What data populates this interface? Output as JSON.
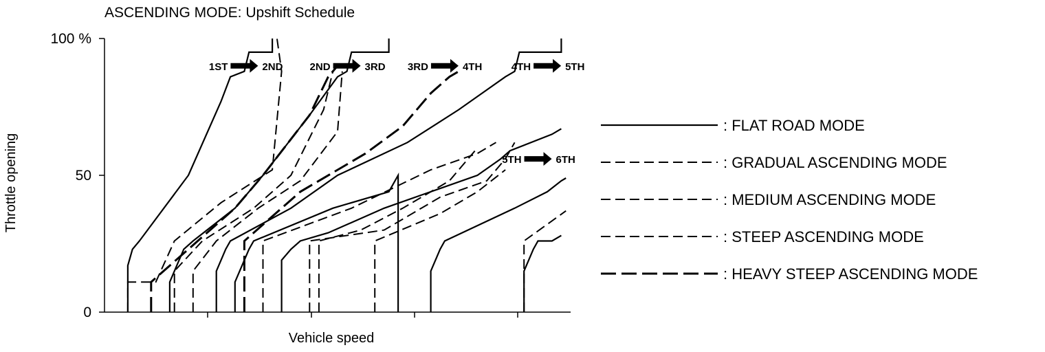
{
  "chart_data": {
    "type": "line",
    "title": "ASCENDING MODE: Upshift Schedule",
    "xlabel": "Vehicle speed",
    "ylabel": "Throttle opening",
    "y_ticks": [
      "0",
      "50",
      "100 %"
    ],
    "ylim": [
      0,
      100
    ],
    "xlim": [
      0,
      100
    ],
    "legend_position": "right",
    "series": [
      {
        "name": ": FLAT ROAD MODE",
        "style": "solid",
        "lines": [
          [
            [
              5,
              0
            ],
            [
              5,
              17
            ],
            [
              6,
              23
            ],
            [
              7.5,
              26
            ],
            [
              18,
              50
            ],
            [
              25,
              77
            ],
            [
              27,
              86
            ],
            [
              30,
              88
            ],
            [
              31,
              95
            ],
            [
              36,
              95
            ],
            [
              36,
              100
            ]
          ],
          [
            [
              14,
              0
            ],
            [
              14,
              11
            ],
            [
              15,
              15
            ],
            [
              16,
              19
            ],
            [
              17,
              23
            ],
            [
              19,
              26
            ],
            [
              28,
              38
            ],
            [
              34,
              50
            ],
            [
              44,
              72
            ],
            [
              50,
              86
            ],
            [
              52,
              88
            ],
            [
              53,
              95
            ],
            [
              61,
              95
            ],
            [
              61,
              100
            ]
          ],
          [
            [
              24,
              0
            ],
            [
              24,
              15
            ],
            [
              25,
              19
            ],
            [
              26,
              23
            ],
            [
              27,
              26
            ],
            [
              40,
              38
            ],
            [
              50,
              50
            ],
            [
              65,
              62
            ],
            [
              76,
              74
            ],
            [
              86,
              86
            ],
            [
              88,
              88
            ],
            [
              89,
              95
            ],
            [
              98,
              95
            ],
            [
              98,
              100
            ]
          ],
          [
            [
              28,
              0
            ],
            [
              28,
              11
            ],
            [
              29,
              15
            ],
            [
              30,
              19
            ],
            [
              31,
              23
            ],
            [
              32,
              26
            ],
            [
              49,
              38
            ],
            [
              61,
              44
            ],
            [
              63,
              50
            ],
            [
              63,
              0
            ]
          ],
          [
            [
              38,
              0
            ],
            [
              38,
              19
            ],
            [
              40,
              23
            ],
            [
              42,
              26
            ],
            [
              48,
              29
            ],
            [
              60,
              38
            ],
            [
              70,
              44
            ],
            [
              80,
              50
            ],
            [
              85,
              56
            ],
            [
              87,
              59
            ],
            [
              96,
              65
            ],
            [
              98,
              67
            ]
          ],
          [
            [
              70,
              0
            ],
            [
              70,
              15
            ],
            [
              71,
              19
            ],
            [
              72,
              23
            ],
            [
              73,
              26
            ],
            [
              88,
              38
            ],
            [
              95,
              44
            ],
            [
              98,
              48
            ],
            [
              99,
              49
            ]
          ],
          [
            [
              90,
              0
            ],
            [
              90,
              15
            ],
            [
              91,
              19
            ],
            [
              92,
              23
            ],
            [
              93,
              26
            ],
            [
              96,
              26
            ],
            [
              98,
              28
            ]
          ]
        ]
      },
      {
        "name": ": GRADUAL ASCENDING MODE",
        "style": "dash",
        "lines": [
          [
            [
              5,
              0
            ],
            [
              5,
              11
            ],
            [
              11,
              11
            ],
            [
              15,
              26
            ],
            [
              25,
              40
            ],
            [
              36,
              52
            ],
            [
              38,
              88
            ],
            [
              37,
              100
            ]
          ]
        ]
      },
      {
        "name": ": MEDIUM ASCENDING MODE",
        "style": "dash",
        "lines": [
          [
            [
              15,
              0
            ],
            [
              15,
              15
            ],
            [
              21,
              26
            ],
            [
              32,
              38
            ],
            [
              40,
              50
            ],
            [
              47,
              74
            ],
            [
              49,
              88
            ]
          ],
          [
            [
              34,
              0
            ],
            [
              34,
              26
            ],
            [
              53,
              38
            ],
            [
              70,
              52
            ],
            [
              80,
              58
            ],
            [
              84,
              62
            ]
          ],
          [
            [
              44,
              0
            ],
            [
              44,
              26
            ],
            [
              60,
              30
            ],
            [
              72,
              42
            ],
            [
              82,
              48
            ],
            [
              86,
              56
            ],
            [
              88,
              62
            ]
          ]
        ]
      },
      {
        "name": ": STEEP ASCENDING MODE",
        "style": "dash",
        "lines": [
          [
            [
              19,
              0
            ],
            [
              19,
              15
            ],
            [
              24,
              26
            ],
            [
              33,
              38
            ],
            [
              42,
              48
            ],
            [
              50,
              66
            ],
            [
              51,
              88
            ]
          ],
          [
            [
              46,
              0
            ],
            [
              46,
              26
            ],
            [
              55,
              30
            ],
            [
              64,
              38
            ],
            [
              74,
              48
            ],
            [
              78,
              56
            ],
            [
              80,
              60
            ]
          ],
          [
            [
              58,
              0
            ],
            [
              58,
              26
            ],
            [
              72,
              36
            ],
            [
              80,
              44
            ],
            [
              86,
              52
            ]
          ],
          [
            [
              90,
              0
            ],
            [
              90,
              26
            ],
            [
              99,
              37
            ]
          ]
        ]
      },
      {
        "name": ": HEAVY STEEP ASCENDING MODE",
        "style": "longdash",
        "lines": [
          [
            [
              10,
              0
            ],
            [
              10,
              11
            ],
            [
              20,
              26
            ],
            [
              28,
              38
            ],
            [
              34,
              50
            ],
            [
              44,
              72
            ],
            [
              48,
              86
            ],
            [
              50,
              90
            ]
          ],
          [
            [
              30,
              0
            ],
            [
              30,
              26
            ],
            [
              42,
              44
            ],
            [
              56,
              58
            ],
            [
              64,
              68
            ],
            [
              70,
              80
            ],
            [
              74,
              86
            ],
            [
              76,
              88
            ]
          ]
        ]
      }
    ],
    "annotations": [
      {
        "from": "1ST",
        "to": "2ND",
        "y": 90,
        "x": 30
      },
      {
        "from": "2ND",
        "to": "3RD",
        "y": 90,
        "x": 52
      },
      {
        "from": "3RD",
        "to": "4TH",
        "y": 90,
        "x": 73
      },
      {
        "from": "4TH",
        "to": "5TH",
        "y": 90,
        "x": 95
      },
      {
        "from": "5TH",
        "to": "6TH",
        "y": 56,
        "x": 93
      }
    ]
  }
}
